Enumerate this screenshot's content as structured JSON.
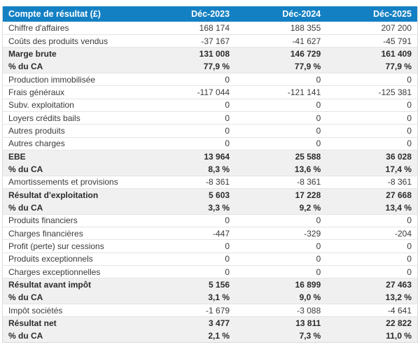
{
  "colors": {
    "header_bg": "#1480c4",
    "header_text": "#ffffff",
    "band_bg": "#f0f0f0",
    "row_border": "#e4e4e4",
    "outer_border": "#d9d9d9",
    "text": "#3a3a3a"
  },
  "chart_data": {
    "type": "table",
    "title": "Compte de résultat (£)",
    "header": {
      "label": "Compte de résultat (£)",
      "columns": [
        "Déc-2023",
        "Déc-2024",
        "Déc-2025"
      ]
    },
    "rows": [
      {
        "label": "Chiffre d'affaires",
        "values": [
          "168 174",
          "188 355",
          "207 200"
        ],
        "highlight": false
      },
      {
        "label": "Coûts des produits vendus",
        "values": [
          "-37 167",
          "-41 627",
          "-45 791"
        ],
        "highlight": false
      },
      {
        "label": "Marge brute",
        "values": [
          "131 008",
          "146 729",
          "161 409"
        ],
        "highlight": true
      },
      {
        "label": "% du CA",
        "values": [
          "77,9 %",
          "77,9 %",
          "77,9 %"
        ],
        "highlight": true
      },
      {
        "label": "Production immobilisée",
        "values": [
          "0",
          "0",
          "0"
        ],
        "highlight": false
      },
      {
        "label": "Frais généraux",
        "values": [
          "-117 044",
          "-121 141",
          "-125 381"
        ],
        "highlight": false
      },
      {
        "label": "Subv. exploitation",
        "values": [
          "0",
          "0",
          "0"
        ],
        "highlight": false
      },
      {
        "label": "Loyers crédits bails",
        "values": [
          "0",
          "0",
          "0"
        ],
        "highlight": false
      },
      {
        "label": "Autres produits",
        "values": [
          "0",
          "0",
          "0"
        ],
        "highlight": false
      },
      {
        "label": "Autres charges",
        "values": [
          "0",
          "0",
          "0"
        ],
        "highlight": false
      },
      {
        "label": "EBE",
        "values": [
          "13 964",
          "25 588",
          "36 028"
        ],
        "highlight": true
      },
      {
        "label": "% du CA",
        "values": [
          "8,3 %",
          "13,6 %",
          "17,4 %"
        ],
        "highlight": true
      },
      {
        "label": "Amortissements et provisions",
        "values": [
          "-8 361",
          "-8 361",
          "-8 361"
        ],
        "highlight": false
      },
      {
        "label": "Résultat d'exploitation",
        "values": [
          "5 603",
          "17 228",
          "27 668"
        ],
        "highlight": true
      },
      {
        "label": "% du CA",
        "values": [
          "3,3 %",
          "9,2 %",
          "13,4 %"
        ],
        "highlight": true
      },
      {
        "label": "Produits financiers",
        "values": [
          "0",
          "0",
          "0"
        ],
        "highlight": false
      },
      {
        "label": "Charges financières",
        "values": [
          "-447",
          "-329",
          "-204"
        ],
        "highlight": false
      },
      {
        "label": "Profit (perte) sur cessions",
        "values": [
          "0",
          "0",
          "0"
        ],
        "highlight": false
      },
      {
        "label": "Produits exceptionnels",
        "values": [
          "0",
          "0",
          "0"
        ],
        "highlight": false
      },
      {
        "label": "Charges exceptionnelles",
        "values": [
          "0",
          "0",
          "0"
        ],
        "highlight": false
      },
      {
        "label": "Résultat avant impôt",
        "values": [
          "5 156",
          "16 899",
          "27 463"
        ],
        "highlight": true
      },
      {
        "label": "% du CA",
        "values": [
          "3,1 %",
          "9,0 %",
          "13,2 %"
        ],
        "highlight": true
      },
      {
        "label": "Impôt sociétés",
        "values": [
          "-1 679",
          "-3 088",
          "-4 641"
        ],
        "highlight": false
      },
      {
        "label": "Résultat net",
        "values": [
          "3 477",
          "13 811",
          "22 822"
        ],
        "highlight": true
      },
      {
        "label": "% du CA",
        "values": [
          "2,1 %",
          "7,3 %",
          "11,0 %"
        ],
        "highlight": true
      }
    ]
  }
}
